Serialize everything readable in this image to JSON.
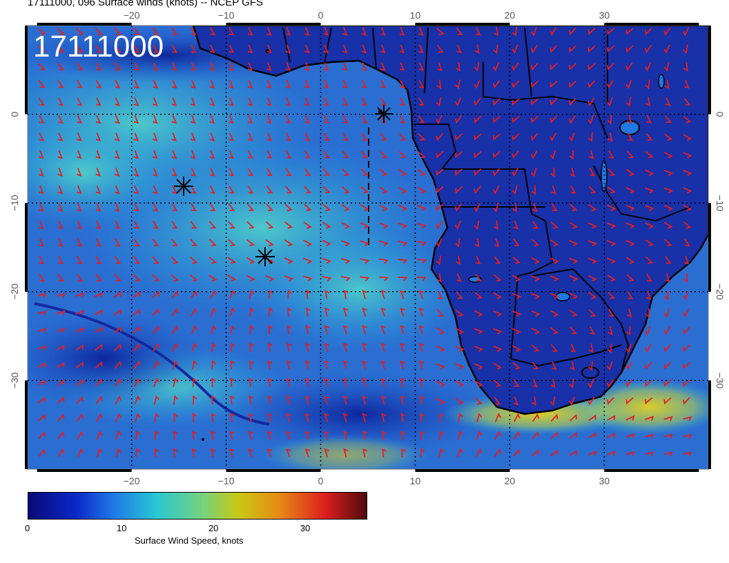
{
  "title": "17111000, 096 Surface winds (knots) -- NCEP GFS",
  "stamp": "17111000",
  "map": {
    "lon_range": [
      -31,
      41
    ],
    "lat_range": [
      -40,
      10
    ],
    "lon_ticks": [
      -20,
      -10,
      0,
      10,
      20,
      30
    ],
    "lat_ticks": [
      0,
      -10,
      -20,
      -30
    ],
    "lon_tick_labels": [
      "−20",
      "−10",
      "0",
      "10",
      "20",
      "30"
    ],
    "lat_tick_labels": [
      "0",
      "−10",
      "−20",
      "−30"
    ],
    "grid": true,
    "colors": {
      "ocean_low": "#1e3cb4",
      "ocean_mid": "#28b4d2",
      "ocean_high": "#e6c814",
      "land": "#1428a0",
      "barb": "#e61e1e",
      "coast": "#000000"
    }
  },
  "colorbar": {
    "title": "Surface Wind Speed, knots",
    "ticks": [
      "0",
      "10",
      "20",
      "30"
    ],
    "tick_values": [
      0,
      10,
      20,
      30
    ],
    "range": [
      0,
      37
    ]
  },
  "markers": [
    "star-marker",
    "star-marker",
    "star-marker"
  ]
}
